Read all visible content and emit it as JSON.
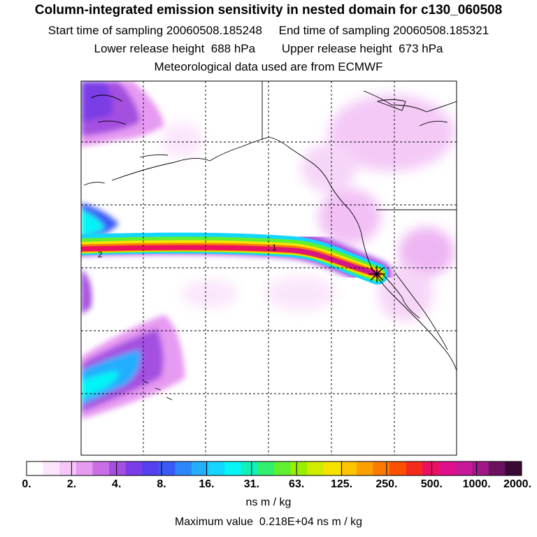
{
  "header": {
    "title": "Column-integrated emission sensitivity in nested domain for c130_060508",
    "sampling": "Start time of sampling 20060508.185248     End time of sampling 20060508.185321",
    "release": "Lower release height  688 hPa        Upper release height  673 hPa",
    "met": "Meteorological data used are from ECMWF"
  },
  "map": {
    "track_labels": [
      "2",
      "1"
    ],
    "release_marker": "star-icon"
  },
  "colorbar": {
    "tick_labels": [
      "0.",
      "2.",
      "4.",
      "8.",
      "16.",
      "31.",
      "63.",
      "125.",
      "250.",
      "500.",
      "1000.",
      "2000."
    ],
    "colors": [
      "#ffffff",
      "#fde6fd",
      "#f6c6f9",
      "#e79af2",
      "#c96ee6",
      "#a54fe0",
      "#7a3de6",
      "#5540f0",
      "#3a5af7",
      "#2f86fb",
      "#23aefe",
      "#15d6ff",
      "#06f5f5",
      "#10f0b8",
      "#30f070",
      "#60f030",
      "#98f000",
      "#cfec00",
      "#f5e400",
      "#fcc400",
      "#fca000",
      "#fc7a00",
      "#fa5000",
      "#f42a1e",
      "#ec1060",
      "#e0108c",
      "#c81898",
      "#a01888",
      "#6c1060",
      "#3a0a36"
    ],
    "units": "ns m / kg",
    "max_value": "Maximum value  0.218E+04 ns m / kg"
  }
}
